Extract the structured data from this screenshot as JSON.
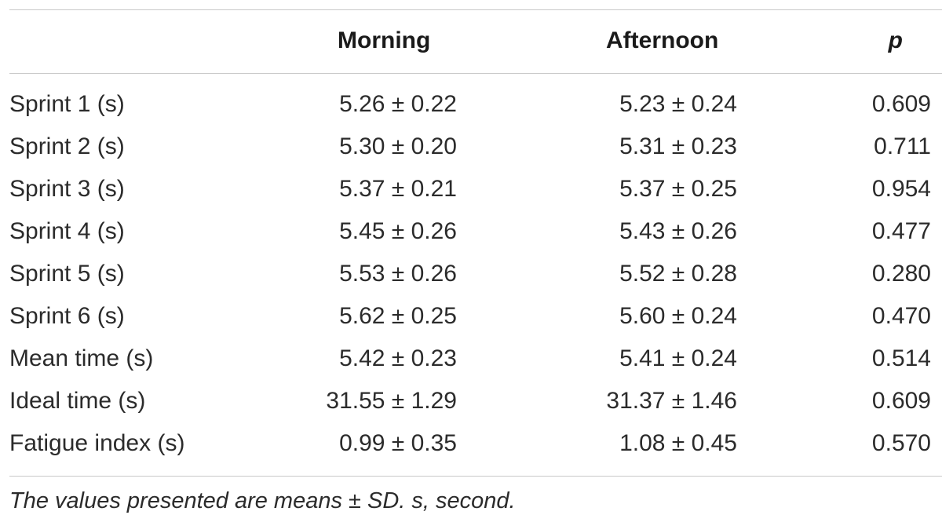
{
  "table": {
    "headers": {
      "label": "",
      "morning": "Morning",
      "afternoon": "Afternoon",
      "p": "p"
    },
    "rows": [
      {
        "label": "Sprint 1 (s)",
        "morning": "5.26 ± 0.22",
        "afternoon": "5.23 ± 0.24",
        "p": "0.609"
      },
      {
        "label": "Sprint 2 (s)",
        "morning": "5.30 ± 0.20",
        "afternoon": "5.31 ± 0.23",
        "p": "0.711"
      },
      {
        "label": "Sprint 3 (s)",
        "morning": "5.37 ± 0.21",
        "afternoon": "5.37 ± 0.25",
        "p": "0.954"
      },
      {
        "label": "Sprint 4 (s)",
        "morning": "5.45 ± 0.26",
        "afternoon": "5.43 ± 0.26",
        "p": "0.477"
      },
      {
        "label": "Sprint 5 (s)",
        "morning": "5.53 ± 0.26",
        "afternoon": "5.52 ± 0.28",
        "p": "0.280"
      },
      {
        "label": "Sprint 6 (s)",
        "morning": "5.62 ± 0.25",
        "afternoon": "5.60 ± 0.24",
        "p": "0.470"
      },
      {
        "label": "Mean time (s)",
        "morning": "5.42 ± 0.23",
        "afternoon": "5.41 ± 0.24",
        "p": "0.514"
      },
      {
        "label": "Ideal time (s)",
        "morning": "31.55 ± 1.29",
        "afternoon": "31.37 ± 1.46",
        "p": "0.609"
      },
      {
        "label": "Fatigue index (s)",
        "morning": "0.99 ± 0.35",
        "afternoon": "1.08 ± 0.45",
        "p": "0.570"
      }
    ],
    "footnote": "The values presented are means ± SD. s, second."
  }
}
